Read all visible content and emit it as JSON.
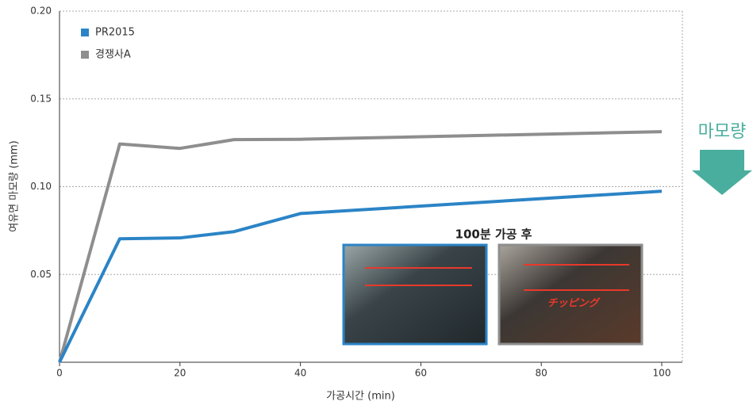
{
  "chart_data": {
    "type": "line",
    "x_label": "가공시간 (min)",
    "y_label": "여유면 마모량 (mm)",
    "x": [
      0,
      10,
      20,
      29,
      40,
      100
    ],
    "series": [
      {
        "name": "PR2015",
        "color": "#2b84c6",
        "values": [
          0,
          0.0703,
          0.0708,
          0.0744,
          0.0847,
          0.0974
        ]
      },
      {
        "name": "경쟁사A",
        "color": "#8e8e8e",
        "values": [
          0,
          0.1243,
          0.1218,
          0.1268,
          0.127,
          0.1313
        ]
      }
    ],
    "xlim": [
      0,
      100
    ],
    "xticks": [
      0,
      20,
      40,
      60,
      80,
      100
    ],
    "ylim": [
      0,
      0.2
    ],
    "yticks": [
      0.05,
      {
        "value": 0.1,
        "label": "0.10"
      },
      0.15,
      {
        "value": 0.2,
        "label": "0.20"
      }
    ],
    "grid": true,
    "legend": "upper-left",
    "annotations": [
      "100분 가공 후",
      "チッピング",
      "마모량"
    ]
  }
}
